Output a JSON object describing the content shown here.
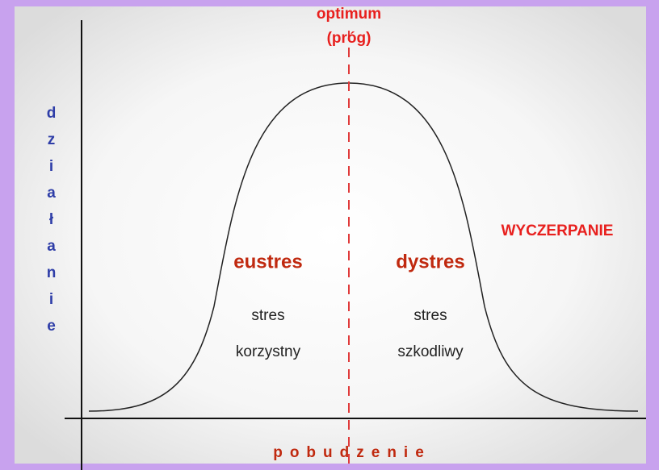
{
  "optimum": "optimum",
  "threshold": "(próg)",
  "y_axis_label": "działanie",
  "x_axis_label": "pobudzenie",
  "exhaustion": "WYCZERPANIE",
  "left_zone": {
    "title": "eustres",
    "line1": "stres",
    "line2": "korzystny"
  },
  "right_zone": {
    "title": "dystres",
    "line1": "stres",
    "line2": "szkodliwy"
  }
}
